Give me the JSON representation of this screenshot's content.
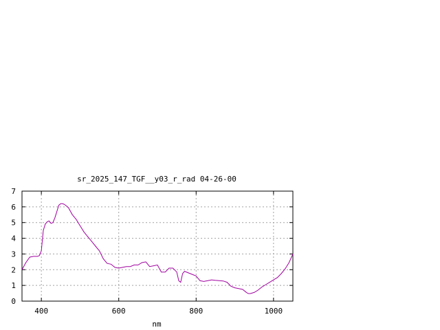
{
  "chart_data": {
    "type": "line",
    "title": "sr_2025_147_TGF__y03_r_rad 04-26-00",
    "xlabel": "nm",
    "ylabel": "",
    "xlim": [
      350,
      1050
    ],
    "ylim": [
      0,
      7
    ],
    "x_ticks": [
      400,
      600,
      800,
      1000
    ],
    "y_ticks": [
      0,
      1,
      2,
      3,
      4,
      5,
      6,
      7
    ],
    "grid": true,
    "line_color": "#a000a0",
    "series": [
      {
        "x": [
          350,
          360,
          370,
          380,
          390,
          395,
          400,
          405,
          410,
          415,
          420,
          425,
          430,
          435,
          440,
          445,
          450,
          455,
          460,
          465,
          470,
          480,
          490,
          500,
          510,
          520,
          530,
          540,
          550,
          560,
          570,
          580,
          590,
          600,
          610,
          620,
          630,
          640,
          650,
          660,
          670,
          680,
          690,
          700,
          710,
          720,
          730,
          740,
          750,
          755,
          760,
          765,
          770,
          780,
          790,
          800,
          810,
          820,
          830,
          840,
          850,
          860,
          870,
          880,
          890,
          900,
          910,
          920,
          930,
          935,
          940,
          950,
          960,
          970,
          980,
          990,
          1000,
          1010,
          1020,
          1030,
          1040,
          1050
        ],
        "y": [
          2.0,
          2.45,
          2.8,
          2.85,
          2.85,
          2.9,
          3.2,
          4.5,
          4.9,
          5.05,
          5.1,
          4.95,
          5.0,
          5.3,
          5.7,
          6.1,
          6.2,
          6.2,
          6.15,
          6.05,
          5.95,
          5.5,
          5.2,
          4.8,
          4.4,
          4.1,
          3.8,
          3.5,
          3.2,
          2.7,
          2.4,
          2.35,
          2.15,
          2.1,
          2.15,
          2.2,
          2.2,
          2.3,
          2.3,
          2.45,
          2.5,
          2.2,
          2.25,
          2.3,
          1.85,
          1.85,
          2.1,
          2.1,
          1.85,
          1.3,
          1.2,
          1.75,
          1.9,
          1.8,
          1.7,
          1.6,
          1.3,
          1.25,
          1.3,
          1.35,
          1.32,
          1.3,
          1.28,
          1.2,
          0.95,
          0.85,
          0.8,
          0.75,
          0.55,
          0.48,
          0.48,
          0.55,
          0.7,
          0.9,
          1.05,
          1.2,
          1.35,
          1.5,
          1.75,
          2.05,
          2.45,
          3.0
        ]
      }
    ]
  }
}
